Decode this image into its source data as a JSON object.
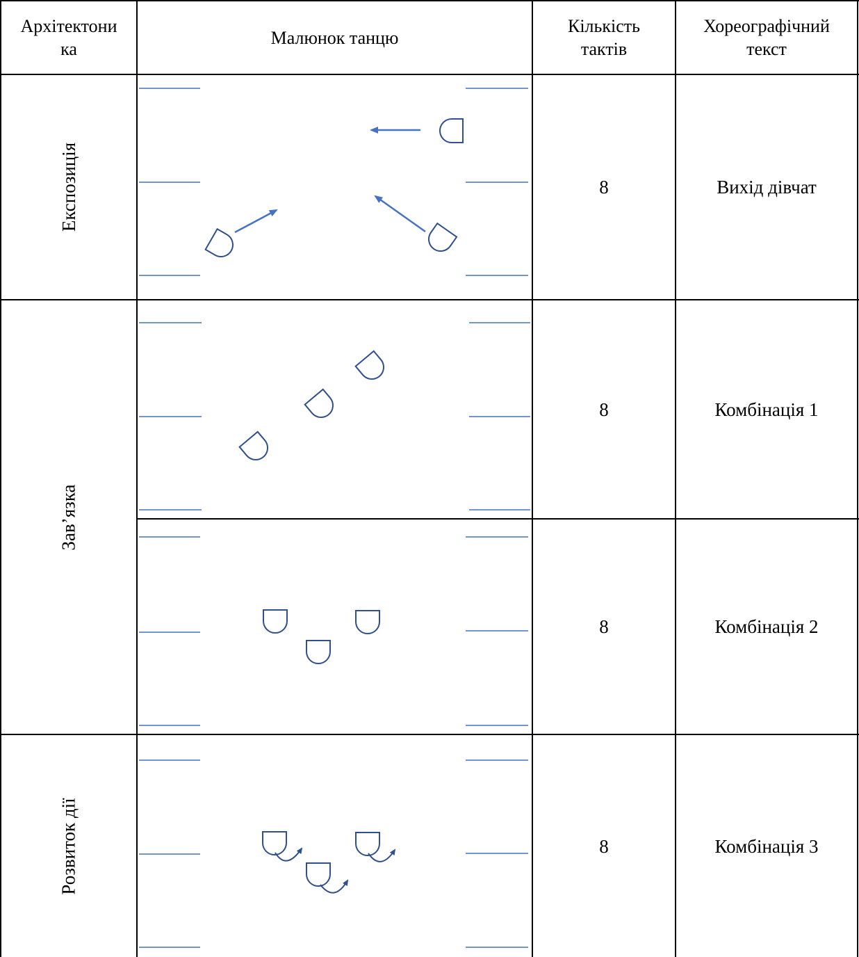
{
  "headers": {
    "architectonics": "Архітектоника",
    "architectonics_line1": "Архітектони",
    "architectonics_line2": "ка",
    "drawing": "Малюнок танцю",
    "bars_line1": "Кількість",
    "bars_line2": "тактів",
    "text_line1": "Хореографічний",
    "text_line2": "текст"
  },
  "sections": {
    "exposition": "Експозиція",
    "plot": "Зав’язка",
    "development": "Розвиток дії"
  },
  "rows": [
    {
      "bars": "8",
      "text": "Вихід дівчат"
    },
    {
      "bars": "8",
      "text": "Комбінація 1"
    },
    {
      "bars": "8",
      "text": "Комбінація 2"
    },
    {
      "bars": "8",
      "text": "Комбінація 3"
    }
  ],
  "colors": {
    "stage_lines": "#4472c4",
    "figures": "#2f4f8f",
    "arrows": "#4472c4",
    "border": "#000000"
  }
}
